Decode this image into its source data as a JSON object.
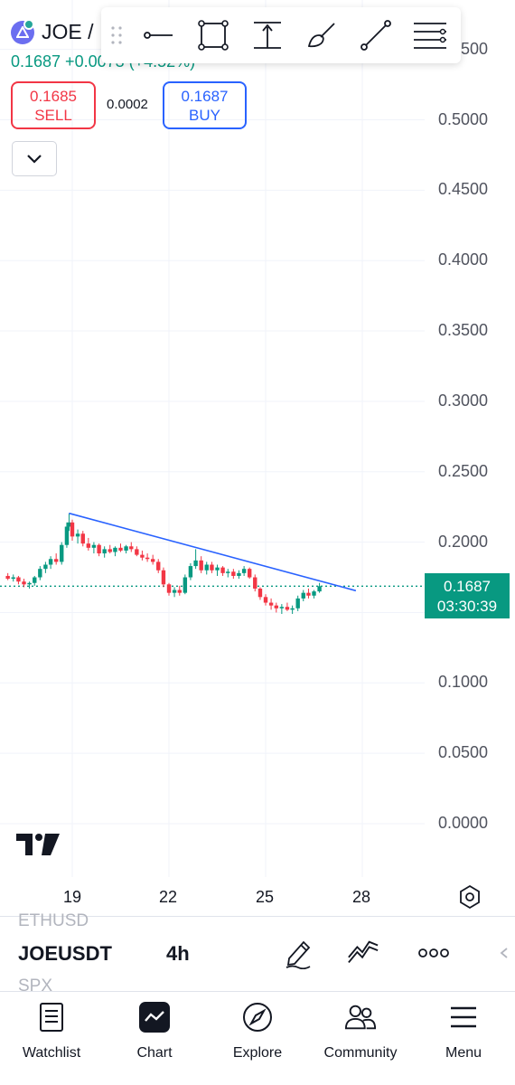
{
  "header": {
    "symbol_short": "JOE /",
    "price_change": "0.1687 +0.0073 (+4.52%)",
    "sell_price": "0.1685",
    "sell_label": "SELL",
    "spread": "0.0002",
    "buy_price": "0.1687",
    "buy_label": "BUY"
  },
  "toolbar": {
    "tools": [
      "horizontal-line-icon",
      "rectangle-icon",
      "price-range-icon",
      "brush-icon",
      "trend-line-icon",
      "more-tools-icon"
    ]
  },
  "price_axis": {
    "labels": [
      "0.5500",
      "0.5000",
      "0.4500",
      "0.4000",
      "0.3500",
      "0.3000",
      "0.2500",
      "0.2000",
      "0.1500",
      "0.1000",
      "0.0500",
      "0.0000"
    ],
    "last_price": "0.1687",
    "countdown": "03:30:39"
  },
  "time_axis": {
    "labels": [
      "19",
      "22",
      "25",
      "28"
    ]
  },
  "colors": {
    "up": "#089981",
    "down": "#f23645",
    "trendline": "#2962ff",
    "sell": "#f23645",
    "buy": "#2962ff"
  },
  "symbol_bar": {
    "prev_symbol": "ETHUSD",
    "symbol": "JOEUSDT",
    "interval": "4h",
    "next_symbol": "SPX"
  },
  "nav": [
    {
      "label": "Watchlist",
      "icon": "watchlist-icon"
    },
    {
      "label": "Chart",
      "icon": "chart-icon"
    },
    {
      "label": "Explore",
      "icon": "compass-icon"
    },
    {
      "label": "Community",
      "icon": "community-icon"
    },
    {
      "label": "Menu",
      "icon": "menu-icon"
    }
  ],
  "chart_data": {
    "type": "candlestick",
    "symbol": "JOEUSDT",
    "interval": "4h",
    "x_ticks": [
      "19",
      "22",
      "25",
      "28"
    ],
    "ylim": [
      0.0,
      0.55
    ],
    "y_ticks": [
      0.0,
      0.05,
      0.1,
      0.15,
      0.2,
      0.25,
      0.3,
      0.35,
      0.4,
      0.45,
      0.5,
      0.55
    ],
    "last_price": 0.1687,
    "trendline": {
      "from": {
        "day": 18.9,
        "price": 0.2205
      },
      "to": {
        "day": 27.8,
        "price": 0.1655
      }
    },
    "candles": [
      [
        17.0,
        0.176,
        0.178,
        0.173,
        0.174
      ],
      [
        17.17,
        0.174,
        0.177,
        0.172,
        0.175
      ],
      [
        17.33,
        0.175,
        0.176,
        0.17,
        0.172
      ],
      [
        17.5,
        0.172,
        0.174,
        0.168,
        0.17
      ],
      [
        17.67,
        0.17,
        0.172,
        0.167,
        0.171
      ],
      [
        17.83,
        0.171,
        0.176,
        0.169,
        0.175
      ],
      [
        18.0,
        0.175,
        0.183,
        0.173,
        0.181
      ],
      [
        18.17,
        0.181,
        0.186,
        0.178,
        0.184
      ],
      [
        18.33,
        0.184,
        0.19,
        0.181,
        0.188
      ],
      [
        18.5,
        0.188,
        0.192,
        0.184,
        0.186
      ],
      [
        18.67,
        0.186,
        0.2,
        0.184,
        0.198
      ],
      [
        18.83,
        0.198,
        0.214,
        0.196,
        0.211
      ],
      [
        18.9,
        0.211,
        0.2205,
        0.208,
        0.214
      ],
      [
        19.0,
        0.214,
        0.216,
        0.201,
        0.204
      ],
      [
        19.17,
        0.204,
        0.209,
        0.199,
        0.206
      ],
      [
        19.33,
        0.206,
        0.208,
        0.197,
        0.199
      ],
      [
        19.5,
        0.199,
        0.203,
        0.194,
        0.196
      ],
      [
        19.67,
        0.196,
        0.2,
        0.192,
        0.198
      ],
      [
        19.83,
        0.198,
        0.199,
        0.19,
        0.192
      ],
      [
        20.0,
        0.192,
        0.197,
        0.189,
        0.195
      ],
      [
        20.17,
        0.195,
        0.198,
        0.192,
        0.193
      ],
      [
        20.33,
        0.193,
        0.197,
        0.19,
        0.196
      ],
      [
        20.5,
        0.196,
        0.199,
        0.193,
        0.194
      ],
      [
        20.67,
        0.194,
        0.198,
        0.192,
        0.197
      ],
      [
        20.83,
        0.197,
        0.2,
        0.193,
        0.195
      ],
      [
        21.0,
        0.195,
        0.197,
        0.19,
        0.191
      ],
      [
        21.17,
        0.191,
        0.194,
        0.187,
        0.189
      ],
      [
        21.33,
        0.189,
        0.192,
        0.186,
        0.188
      ],
      [
        21.5,
        0.188,
        0.191,
        0.184,
        0.186
      ],
      [
        21.67,
        0.186,
        0.188,
        0.178,
        0.18
      ],
      [
        21.83,
        0.18,
        0.182,
        0.168,
        0.17
      ],
      [
        22.0,
        0.17,
        0.171,
        0.162,
        0.164
      ],
      [
        22.17,
        0.164,
        0.168,
        0.161,
        0.166
      ],
      [
        22.33,
        0.166,
        0.169,
        0.162,
        0.164
      ],
      [
        22.5,
        0.164,
        0.177,
        0.163,
        0.175
      ],
      [
        22.67,
        0.175,
        0.185,
        0.173,
        0.183
      ],
      [
        22.83,
        0.183,
        0.195,
        0.181,
        0.187
      ],
      [
        23.0,
        0.187,
        0.19,
        0.178,
        0.18
      ],
      [
        23.17,
        0.18,
        0.186,
        0.177,
        0.184
      ],
      [
        23.33,
        0.184,
        0.186,
        0.178,
        0.18
      ],
      [
        23.5,
        0.18,
        0.184,
        0.176,
        0.182
      ],
      [
        23.67,
        0.182,
        0.183,
        0.176,
        0.178
      ],
      [
        23.83,
        0.178,
        0.181,
        0.175,
        0.179
      ],
      [
        24.0,
        0.179,
        0.181,
        0.174,
        0.176
      ],
      [
        24.17,
        0.176,
        0.18,
        0.174,
        0.178
      ],
      [
        24.33,
        0.178,
        0.183,
        0.176,
        0.181
      ],
      [
        24.5,
        0.181,
        0.182,
        0.174,
        0.175
      ],
      [
        24.67,
        0.175,
        0.177,
        0.165,
        0.167
      ],
      [
        24.83,
        0.167,
        0.168,
        0.159,
        0.161
      ],
      [
        25.0,
        0.161,
        0.163,
        0.155,
        0.157
      ],
      [
        25.17,
        0.157,
        0.16,
        0.152,
        0.155
      ],
      [
        25.33,
        0.155,
        0.157,
        0.15,
        0.153
      ],
      [
        25.5,
        0.153,
        0.156,
        0.149,
        0.154
      ],
      [
        25.67,
        0.154,
        0.157,
        0.151,
        0.152
      ],
      [
        25.83,
        0.152,
        0.155,
        0.149,
        0.153
      ],
      [
        26.0,
        0.153,
        0.162,
        0.151,
        0.16
      ],
      [
        26.17,
        0.16,
        0.166,
        0.158,
        0.164
      ],
      [
        26.33,
        0.164,
        0.167,
        0.16,
        0.162
      ],
      [
        26.5,
        0.162,
        0.166,
        0.16,
        0.165
      ],
      [
        26.67,
        0.165,
        0.171,
        0.164,
        0.1687
      ]
    ]
  }
}
